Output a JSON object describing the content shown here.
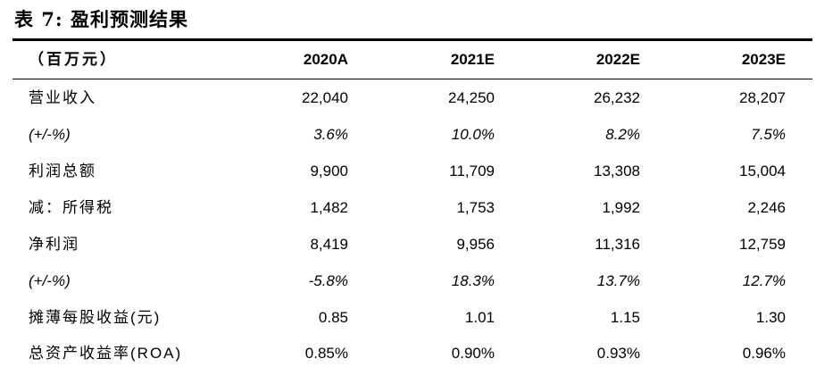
{
  "title": "表 7:  盈利预测结果",
  "table": {
    "header": [
      "（百万元）",
      "2020A",
      "2021E",
      "2022E",
      "2023E"
    ],
    "rows": [
      {
        "label": "营业收入",
        "values": [
          "22,040",
          "24,250",
          "26,232",
          "28,207"
        ],
        "italic": false
      },
      {
        "label": "(+/-%)",
        "values": [
          "3.6%",
          "10.0%",
          "8.2%",
          "7.5%"
        ],
        "italic": true
      },
      {
        "label": "利润总额",
        "values": [
          "9,900",
          "11,709",
          "13,308",
          "15,004"
        ],
        "italic": false
      },
      {
        "label": "减：所得税",
        "values": [
          "1,482",
          "1,753",
          "1,992",
          "2,246"
        ],
        "italic": false
      },
      {
        "label": "净利润",
        "values": [
          "8,419",
          "9,956",
          "11,316",
          "12,759"
        ],
        "italic": false
      },
      {
        "label": "(+/-%)",
        "values": [
          "-5.8%",
          "18.3%",
          "13.7%",
          "12.7%"
        ],
        "italic": true
      },
      {
        "label": "摊薄每股收益(元)",
        "values": [
          "0.85",
          "1.01",
          "1.15",
          "1.30"
        ],
        "italic": false
      },
      {
        "label": "总资产收益率(ROA)",
        "values": [
          "0.85%",
          "0.90%",
          "0.93%",
          "0.96%"
        ],
        "italic": false
      }
    ]
  }
}
